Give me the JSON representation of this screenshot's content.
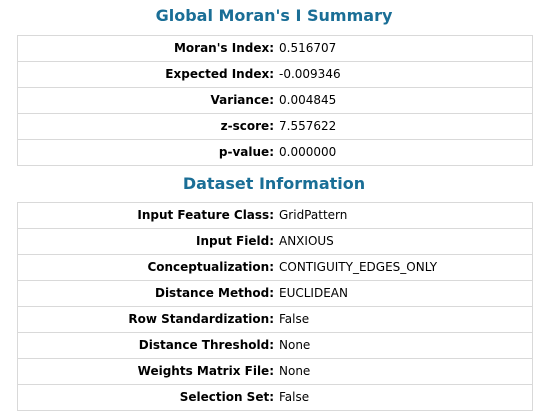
{
  "summary": {
    "title": "Global Moran's I Summary",
    "rows": [
      {
        "label": "Moran's Index:",
        "value": "0.516707"
      },
      {
        "label": "Expected Index:",
        "value": "-0.009346"
      },
      {
        "label": "Variance:",
        "value": "0.004845"
      },
      {
        "label": "z-score:",
        "value": "7.557622"
      },
      {
        "label": "p-value:",
        "value": "0.000000"
      }
    ]
  },
  "dataset": {
    "title": "Dataset Information",
    "rows": [
      {
        "label": "Input Feature Class:",
        "value": "GridPattern"
      },
      {
        "label": "Input Field:",
        "value": "ANXIOUS"
      },
      {
        "label": "Conceptualization:",
        "value": "CONTIGUITY_EDGES_ONLY"
      },
      {
        "label": "Distance Method:",
        "value": "EUCLIDEAN"
      },
      {
        "label": "Row Standardization:",
        "value": "False"
      },
      {
        "label": "Distance Threshold:",
        "value": "None"
      },
      {
        "label": "Weights Matrix File:",
        "value": "None"
      },
      {
        "label": "Selection Set:",
        "value": "False"
      }
    ]
  },
  "colors": {
    "title": "#1a6e96",
    "border": "#d9d9d9"
  }
}
